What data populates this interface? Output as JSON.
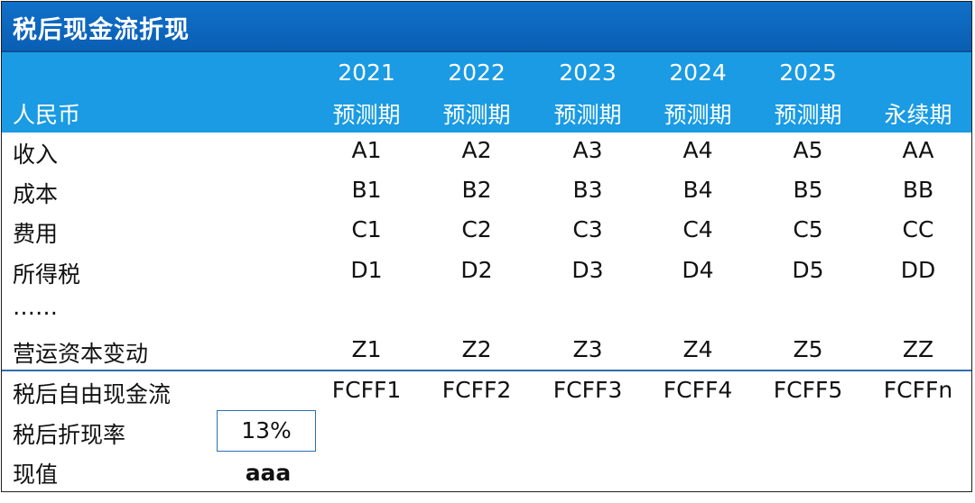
{
  "title": "税后现金流折现",
  "header": {
    "currency": "人民币",
    "columns": [
      {
        "year": "2021",
        "period": "预测期"
      },
      {
        "year": "2022",
        "period": "预测期"
      },
      {
        "year": "2023",
        "period": "预测期"
      },
      {
        "year": "2024",
        "period": "预测期"
      },
      {
        "year": "2025",
        "period": "预测期"
      },
      {
        "year": "",
        "period": "永续期"
      }
    ]
  },
  "rows": [
    {
      "label": "收入",
      "values": [
        "A1",
        "A2",
        "A3",
        "A4",
        "A5",
        "AA"
      ]
    },
    {
      "label": "成本",
      "values": [
        "B1",
        "B2",
        "B3",
        "B4",
        "B5",
        "BB"
      ]
    },
    {
      "label": "费用",
      "values": [
        "C1",
        "C2",
        "C3",
        "C4",
        "C5",
        "CC"
      ]
    },
    {
      "label": "所得税",
      "values": [
        "D1",
        "D2",
        "D3",
        "D4",
        "D5",
        "DD"
      ]
    },
    {
      "label": "……",
      "values": [
        "",
        "",
        "",
        "",
        "",
        ""
      ]
    },
    {
      "label": "营运资本变动",
      "values": [
        "Z1",
        "Z2",
        "Z3",
        "Z4",
        "Z5",
        "ZZ"
      ]
    }
  ],
  "fcff": {
    "label": "税后自由现金流",
    "values": [
      "FCFF1",
      "FCFF2",
      "FCFF3",
      "FCFF4",
      "FCFF5",
      "FCFFn"
    ]
  },
  "discount_rate": {
    "label": "税后折现率",
    "value": "13%"
  },
  "present_value": {
    "label": "现值",
    "value": "aaa"
  }
}
